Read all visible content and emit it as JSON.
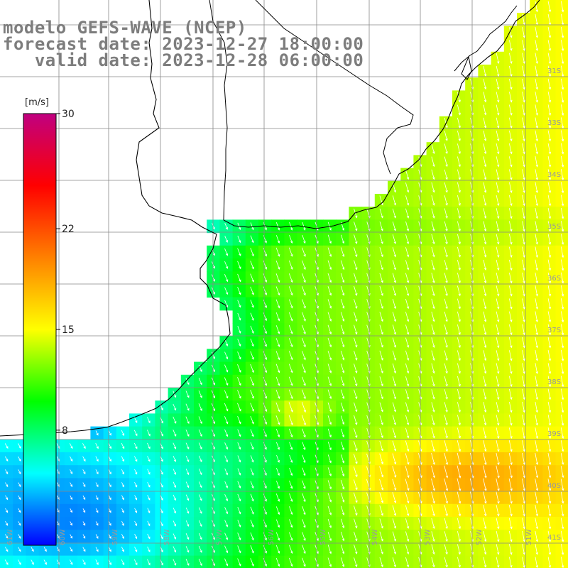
{
  "title": {
    "line1": "modelo GEFS-WAVE (NCEP)",
    "line2": "forecast date: 2023-12-27 18:00:00",
    "line3": "   valid date: 2023-12-28 06:00:00"
  },
  "colorbar": {
    "units": "[m/s]",
    "min": 0,
    "max": 30,
    "tick_labels": [
      "30",
      "22",
      "15",
      "8"
    ],
    "tick_values": [
      30,
      22,
      15,
      8
    ],
    "colors": [
      "#0000ff",
      "#00ffff",
      "#00ff00",
      "#ffff00",
      "#ff8000",
      "#ff0000",
      "#c00080"
    ]
  },
  "axes": {
    "lat_labels": [
      "31S",
      "33S",
      "34S",
      "35S",
      "36S",
      "37S",
      "38S",
      "39S",
      "40S",
      "41S"
    ],
    "lat_values": [
      -31,
      -33,
      -34,
      -35,
      -36,
      -37,
      -38,
      -39,
      -40,
      -41
    ],
    "lon_labels": [
      "61W",
      "60W",
      "59W",
      "58W",
      "57W",
      "56W",
      "55W",
      "54W",
      "53W",
      "52W",
      "51W"
    ],
    "lon_values": [
      -61,
      -60,
      -59,
      -58,
      -57,
      -56,
      -55,
      -54,
      -53,
      -52,
      -51
    ]
  },
  "field": {
    "variable": "wind speed and direction",
    "grid_step_deg": 0.25,
    "speed_range_mps": [
      2,
      19
    ],
    "mean_direction": "from north-west"
  },
  "colors": {
    "land": "#ffffff",
    "coastline": "#000000",
    "grid": "#888888",
    "label_text": "#7d7d7d"
  }
}
